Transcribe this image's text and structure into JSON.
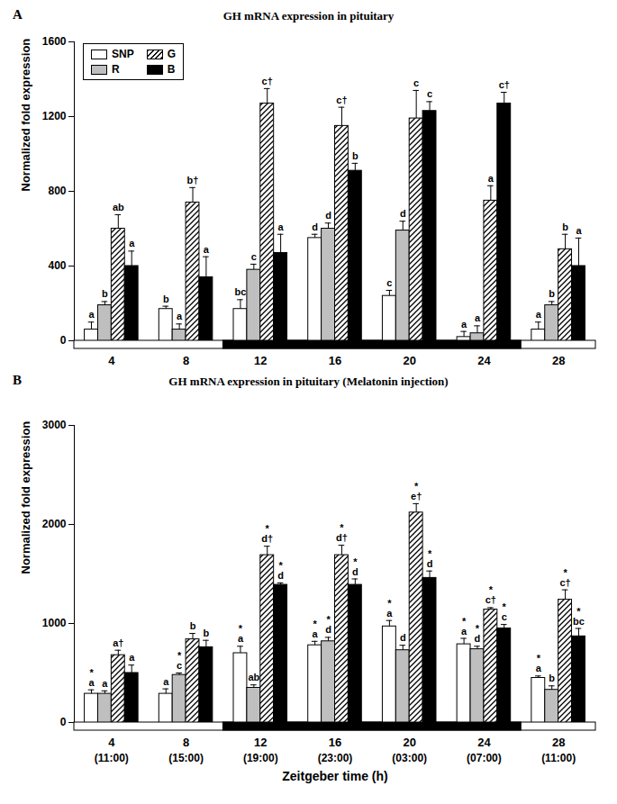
{
  "chart_data": [
    {
      "type": "bar",
      "panel_label": "A",
      "title": "GH mRNA expression in pituitary",
      "y_label": "Normalized fold expression",
      "categories": [
        4,
        8,
        12,
        16,
        20,
        24,
        28
      ],
      "ylim": [
        0,
        1600
      ],
      "yticks": [
        0,
        400,
        800,
        1200,
        1600
      ],
      "legend": "top-left",
      "dark_period": [
        12,
        24
      ],
      "series": [
        {
          "name": "SNP",
          "color": "#ffffff",
          "values": [
            60,
            170,
            170,
            550,
            240,
            20,
            60
          ],
          "errors": [
            40,
            15,
            50,
            20,
            30,
            30,
            40
          ],
          "annotations": [
            [
              "a"
            ],
            [
              "b"
            ],
            [
              "bc"
            ],
            [
              "d"
            ],
            [
              "c"
            ],
            [
              "a"
            ],
            [
              "a"
            ]
          ]
        },
        {
          "name": "R",
          "color": "#bfbfbf",
          "values": [
            190,
            60,
            380,
            600,
            590,
            40,
            190
          ],
          "errors": [
            20,
            30,
            30,
            30,
            50,
            40,
            20
          ],
          "annotations": [
            [
              "b"
            ],
            [
              "a"
            ],
            [
              "c"
            ],
            [
              "d"
            ],
            [
              "d"
            ],
            [
              "a"
            ],
            [
              "b"
            ]
          ]
        },
        {
          "name": "G",
          "color": "#ffffff",
          "marker": "hatch",
          "values": [
            600,
            740,
            1270,
            1150,
            1190,
            750,
            490
          ],
          "errors": [
            75,
            80,
            80,
            100,
            150,
            80,
            80
          ],
          "annotations": [
            [
              "ab"
            ],
            [
              "b†"
            ],
            [
              "c†"
            ],
            [
              "c†"
            ],
            [
              "c"
            ],
            [
              "a"
            ],
            [
              "b"
            ]
          ]
        },
        {
          "name": "B",
          "color": "#000000",
          "values": [
            400,
            340,
            470,
            910,
            1230,
            1270,
            400
          ],
          "errors": [
            80,
            110,
            100,
            40,
            50,
            60,
            150
          ],
          "annotations": [
            [
              "a"
            ],
            [
              "a"
            ],
            [
              "a"
            ],
            [
              "b"
            ],
            [
              "c"
            ],
            [
              "c†"
            ],
            [
              "a"
            ]
          ]
        }
      ]
    },
    {
      "type": "bar",
      "panel_label": "B",
      "title": "GH mRNA expression in pituitary (Melatonin injection)",
      "y_label": "Normalized fold expression",
      "x_label": "Zeitgeber time (h)",
      "categories": [
        4,
        8,
        12,
        16,
        20,
        24,
        28
      ],
      "clock_labels": [
        "(11:00)",
        "(15:00)",
        "(19:00)",
        "(23:00)",
        "(03:00)",
        "(07:00)",
        "(11:00)"
      ],
      "ylim": [
        0,
        3000
      ],
      "yticks": [
        0,
        1000,
        2000,
        3000
      ],
      "dark_period": [
        12,
        24
      ],
      "series": [
        {
          "name": "SNP",
          "color": "#ffffff",
          "values": [
            290,
            290,
            700,
            780,
            970,
            790,
            450
          ],
          "errors": [
            40,
            50,
            70,
            40,
            60,
            60,
            20
          ],
          "annotations": [
            [
              "*",
              "a"
            ],
            [
              "a"
            ],
            [
              "*",
              "a"
            ],
            [
              "*",
              "a"
            ],
            [
              "*",
              "a"
            ],
            [
              "*",
              "a"
            ],
            [
              "*",
              "a"
            ]
          ]
        },
        {
          "name": "R",
          "color": "#bfbfbf",
          "values": [
            290,
            480,
            350,
            820,
            730,
            740,
            330
          ],
          "errors": [
            30,
            20,
            30,
            40,
            50,
            30,
            40
          ],
          "annotations": [
            [
              "a"
            ],
            [
              "*",
              "c"
            ],
            [
              "ab"
            ],
            [
              "*",
              "d"
            ],
            [
              "d"
            ],
            [
              "*",
              "d"
            ],
            [
              "b"
            ]
          ]
        },
        {
          "name": "G",
          "color": "#ffffff",
          "marker": "hatch",
          "values": [
            680,
            840,
            1690,
            1690,
            2120,
            1140,
            1240
          ],
          "errors": [
            50,
            60,
            90,
            100,
            90,
            20,
            100
          ],
          "annotations": [
            [
              "a†"
            ],
            [
              "b"
            ],
            [
              "*",
              "d†"
            ],
            [
              "*",
              "d†"
            ],
            [
              "*",
              "e†"
            ],
            [
              "*",
              "c†"
            ],
            [
              "*",
              "c†"
            ]
          ]
        },
        {
          "name": "B",
          "color": "#000000",
          "values": [
            500,
            760,
            1390,
            1390,
            1460,
            950,
            870
          ],
          "errors": [
            80,
            70,
            20,
            60,
            70,
            40,
            80
          ],
          "annotations": [
            [
              "a"
            ],
            [
              "b"
            ],
            [
              "*",
              "d"
            ],
            [
              "*",
              "d"
            ],
            [
              "*",
              "d"
            ],
            [
              "*",
              "c"
            ],
            [
              "*",
              "bc"
            ]
          ]
        }
      ]
    }
  ]
}
